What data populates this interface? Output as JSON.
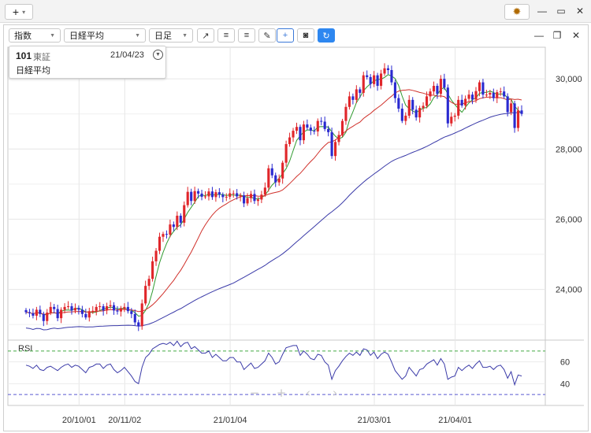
{
  "window": {
    "add_label": "+",
    "settings_icon": "gear-icon"
  },
  "toolbar": {
    "market_select": "指数",
    "symbol_select": "日経平均",
    "period_select": "日足"
  },
  "info": {
    "code": "101",
    "exchange": "東証",
    "date": "21/04/23",
    "name": "日経平均"
  },
  "colors": {
    "up": "#e0262a",
    "down": "#2a2ad0",
    "ma_short": "#2f9a2f",
    "ma_mid": "#d0302a",
    "ma_long": "#3a3aa8",
    "rsi": "#3a3aa8",
    "rsi_band": "#44aa44"
  },
  "chart_data": {
    "type": "candlestick",
    "title": "",
    "x_ticks": [
      "20/10/01",
      "20/11/02",
      "21/01/04",
      "21/03/01",
      "21/04/01"
    ],
    "y_ticks": [
      "24,000",
      "26,000",
      "28,000",
      "30,000"
    ],
    "ylim": [
      22600,
      30900
    ],
    "close_series": [
      23350,
      23320,
      23250,
      23420,
      23300,
      23100,
      23340,
      23500,
      23440,
      23180,
      23420,
      23500,
      23520,
      23400,
      23470,
      23420,
      23300,
      23200,
      23380,
      23390,
      23500,
      23520,
      23400,
      23520,
      23550,
      23400,
      23370,
      23460,
      23500,
      23380,
      23300,
      23060,
      22950,
      23600,
      24100,
      24300,
      24800,
      25100,
      25500,
      25580,
      25560,
      25850,
      25780,
      26100,
      25900,
      26400,
      26780,
      26520,
      26800,
      26730,
      26640,
      26650,
      26790,
      26630,
      26770,
      26700,
      26630,
      26640,
      26740,
      26740,
      26650,
      26680,
      26450,
      26600,
      26720,
      26520,
      26560,
      26700,
      26900,
      27450,
      27250,
      27050,
      27160,
      27610,
      28140,
      28330,
      28520,
      28630,
      28250,
      28700,
      28610,
      28520,
      28500,
      28800,
      28780,
      28570,
      28480,
      27800,
      28200,
      28400,
      28800,
      29200,
      29500,
      29400,
      29700,
      29600,
      30100,
      30050,
      29850,
      30100,
      29800,
      30150,
      30300,
      30250,
      29900,
      29450,
      29150,
      28800,
      28950,
      29400,
      29120,
      28900,
      29170,
      29230,
      29500,
      29640,
      29800,
      29570,
      30000,
      29750,
      28730,
      28920,
      28950,
      29400,
      29240,
      29430,
      29550,
      29410,
      29650,
      29900,
      29550,
      29550,
      29600,
      29450,
      29620,
      29640,
      29500,
      29050,
      29300,
      28600,
      29100,
      29000
    ],
    "rsi": {
      "label": "RSI",
      "levels": [
        70,
        30
      ],
      "ticks": [
        "60",
        "40"
      ],
      "ylim": [
        20,
        80
      ],
      "values": [
        57,
        56,
        54,
        57,
        53,
        52,
        55,
        56,
        54,
        52,
        55,
        57,
        58,
        55,
        57,
        56,
        53,
        50,
        55,
        56,
        58,
        58,
        54,
        57,
        58,
        53,
        50,
        52,
        55,
        51,
        47,
        42,
        40,
        55,
        64,
        67,
        72,
        74,
        76,
        77,
        76,
        78,
        75,
        79,
        74,
        77,
        78,
        72,
        74,
        71,
        68,
        68,
        70,
        64,
        67,
        64,
        61,
        61,
        64,
        64,
        60,
        60,
        53,
        56,
        59,
        54,
        55,
        58,
        61,
        68,
        64,
        58,
        60,
        67,
        73,
        74,
        75,
        75,
        66,
        70,
        67,
        63,
        62,
        67,
        66,
        60,
        57,
        44,
        52,
        56,
        61,
        65,
        68,
        66,
        69,
        66,
        72,
        71,
        66,
        69,
        63,
        67,
        69,
        67,
        60,
        52,
        48,
        44,
        47,
        55,
        51,
        47,
        53,
        54,
        58,
        60,
        62,
        57,
        63,
        58,
        44,
        46,
        47,
        55,
        52,
        55,
        57,
        54,
        58,
        61,
        55,
        55,
        56,
        53,
        56,
        57,
        53,
        45,
        51,
        39,
        48,
        47
      ]
    }
  }
}
